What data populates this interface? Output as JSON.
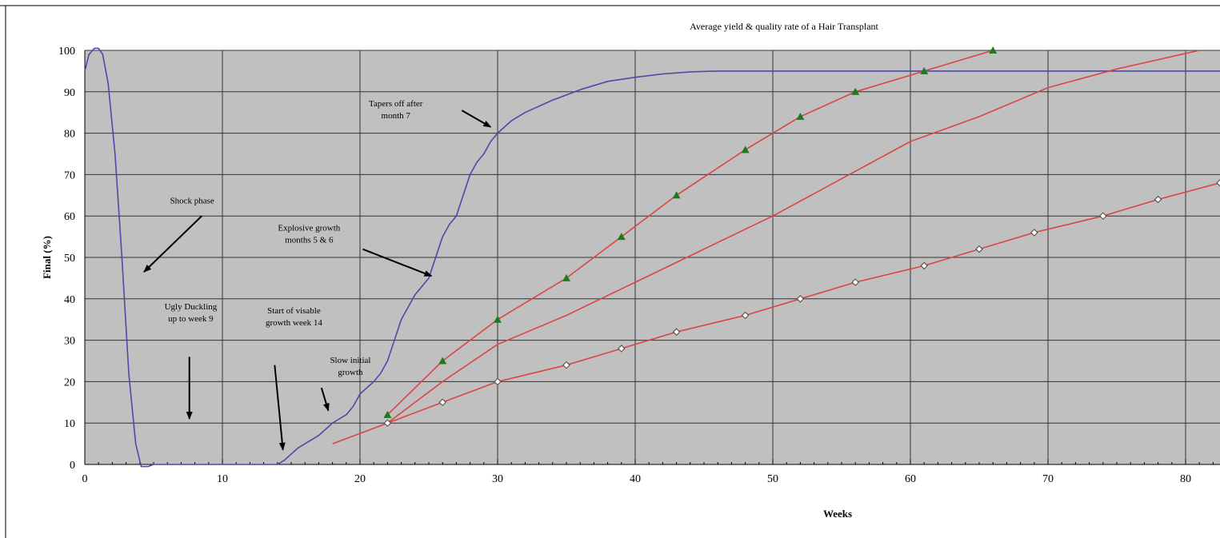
{
  "chart_data": {
    "type": "line",
    "title": "Average yield & quality rate of a Hair Transplant",
    "xlabel": "Weeks",
    "ylabel": "Final (%)",
    "xlim": [
      0,
      82.5
    ],
    "ylim": [
      0,
      100
    ],
    "x_ticks": [
      0,
      10,
      20,
      30,
      40,
      50,
      60,
      70,
      80
    ],
    "y_ticks": [
      0,
      10,
      20,
      30,
      40,
      50,
      60,
      70,
      80,
      90,
      100
    ],
    "grid": true,
    "colors": {
      "plot_bg": "#c0c0c0",
      "grid": "#333333",
      "blue_line": "#4a4aa8",
      "red_line": "#dd4444",
      "triangle_marker": "#1f7a1f",
      "diamond_marker": "#ffffff"
    },
    "series": [
      {
        "color": "#4a4aa8",
        "marker": "none",
        "points": [
          [
            0,
            95
          ],
          [
            0.3,
            99
          ],
          [
            0.7,
            100.5
          ],
          [
            1,
            100.5
          ],
          [
            1.3,
            99
          ],
          [
            1.7,
            92
          ],
          [
            2.2,
            75
          ],
          [
            2.7,
            50
          ],
          [
            3.2,
            22
          ],
          [
            3.7,
            5
          ],
          [
            4.1,
            -0.5
          ],
          [
            4.6,
            -0.5
          ],
          [
            5,
            0
          ],
          [
            14,
            0
          ],
          [
            14.5,
            1
          ],
          [
            15,
            2.5
          ],
          [
            15.5,
            4
          ],
          [
            16,
            5
          ],
          [
            16.5,
            6
          ],
          [
            17,
            7
          ],
          [
            17.5,
            8.5
          ],
          [
            18,
            10
          ],
          [
            18.5,
            11
          ],
          [
            19,
            12
          ],
          [
            19.5,
            14
          ],
          [
            20,
            17
          ],
          [
            21,
            20
          ],
          [
            21.5,
            22
          ],
          [
            22,
            25
          ],
          [
            22.5,
            30
          ],
          [
            23,
            35
          ],
          [
            23.5,
            38
          ],
          [
            24,
            41
          ],
          [
            24.5,
            43
          ],
          [
            25,
            45
          ],
          [
            25.5,
            50
          ],
          [
            26,
            55
          ],
          [
            26.5,
            58
          ],
          [
            27,
            60
          ],
          [
            27.5,
            65
          ],
          [
            28,
            70
          ],
          [
            28.5,
            73
          ],
          [
            29,
            75
          ],
          [
            29.5,
            78
          ],
          [
            30,
            80
          ],
          [
            31,
            83
          ],
          [
            32,
            85
          ],
          [
            34,
            88
          ],
          [
            36,
            90.5
          ],
          [
            38,
            92.5
          ],
          [
            40,
            93.5
          ],
          [
            42,
            94.3
          ],
          [
            44,
            94.8
          ],
          [
            46,
            95
          ],
          [
            50,
            95
          ],
          [
            60,
            95
          ],
          [
            70,
            95
          ],
          [
            82.5,
            95
          ]
        ]
      },
      {
        "color": "#dd4444",
        "marker": "triangle",
        "points": [
          [
            22,
            12
          ],
          [
            26,
            25
          ],
          [
            30,
            35
          ],
          [
            35,
            45
          ],
          [
            39,
            55
          ],
          [
            43,
            65
          ],
          [
            48,
            76
          ],
          [
            52,
            84
          ],
          [
            56,
            90
          ],
          [
            61,
            95
          ],
          [
            66,
            100
          ]
        ]
      },
      {
        "color": "#dd4444",
        "marker": "none",
        "points": [
          [
            18,
            5
          ],
          [
            22,
            10
          ],
          [
            26,
            20
          ],
          [
            30,
            29
          ],
          [
            35,
            36
          ],
          [
            40,
            44
          ],
          [
            45,
            52
          ],
          [
            50,
            60
          ],
          [
            55,
            69
          ],
          [
            60,
            78
          ],
          [
            65,
            84
          ],
          [
            70,
            91
          ],
          [
            75,
            95.5
          ],
          [
            81,
            100
          ]
        ]
      },
      {
        "color": "#dd4444",
        "marker": "diamond",
        "points": [
          [
            22,
            10
          ],
          [
            26,
            15
          ],
          [
            30,
            20
          ],
          [
            35,
            24
          ],
          [
            39,
            28
          ],
          [
            43,
            32
          ],
          [
            48,
            36
          ],
          [
            52,
            40
          ],
          [
            56,
            44
          ],
          [
            61,
            48
          ],
          [
            65,
            52
          ],
          [
            69,
            56
          ],
          [
            74,
            60
          ],
          [
            78,
            64
          ],
          [
            82.5,
            68
          ]
        ]
      }
    ],
    "annotations": [
      {
        "text": [
          "Shock phase"
        ],
        "x": 7.8,
        "y": 63,
        "arrow_from": [
          8.5,
          60
        ],
        "arrow_to": [
          4.3,
          46.5
        ]
      },
      {
        "text": [
          "Ugly Duckling",
          "up to week 9"
        ],
        "x": 7.7,
        "y": 37.5,
        "arrow_from": [
          7.6,
          26
        ],
        "arrow_to": [
          7.6,
          11
        ]
      },
      {
        "text": [
          "Start of visable",
          "growth week 14"
        ],
        "x": 15.2,
        "y": 36.5,
        "arrow_from": [
          13.8,
          24
        ],
        "arrow_to": [
          14.4,
          3.5
        ]
      },
      {
        "text": [
          "Slow initial",
          "growth"
        ],
        "x": 19.3,
        "y": 24.5,
        "arrow_from": [
          17.2,
          18.5
        ],
        "arrow_to": [
          17.7,
          13
        ]
      },
      {
        "text": [
          "Explosive growth",
          "months 5 & 6"
        ],
        "x": 16.3,
        "y": 56.5,
        "arrow_from": [
          20.2,
          52
        ],
        "arrow_to": [
          25.2,
          45.5
        ]
      },
      {
        "text": [
          "Tapers off after",
          "month 7"
        ],
        "x": 22.6,
        "y": 86.5,
        "arrow_from": [
          27.4,
          85.5
        ],
        "arrow_to": [
          29.5,
          81.5
        ]
      }
    ]
  }
}
